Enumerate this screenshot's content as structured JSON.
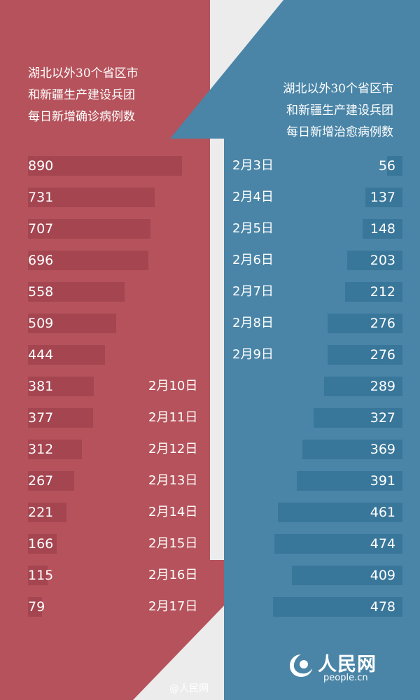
{
  "chart_data": {
    "type": "bar",
    "confirmed": {
      "title_lines": [
        "湖北以外30个省区市",
        "和新疆生产建设兵团",
        "每日新增确诊病例数"
      ],
      "values": [
        890,
        731,
        707,
        696,
        558,
        509,
        444,
        381,
        377,
        312,
        267,
        221,
        166,
        115,
        79
      ]
    },
    "cured": {
      "title_lines": [
        "湖北以外30个省区市",
        "和新疆生产建设兵团",
        "每日新增治愈病例数"
      ],
      "values": [
        56,
        137,
        148,
        203,
        212,
        276,
        276,
        289,
        327,
        369,
        391,
        461,
        474,
        409,
        478
      ]
    },
    "categories": [
      "2月3日",
      "2月4日",
      "2月5日",
      "2月6日",
      "2月7日",
      "2月8日",
      "2月9日",
      "2月10日",
      "2月11日",
      "2月12日",
      "2月13日",
      "2月14日",
      "2月15日",
      "2月16日",
      "2月17日"
    ]
  },
  "brand": {
    "logo_text": "人民网",
    "domain": "people.cn"
  },
  "watermark": "@人民网",
  "colors": {
    "confirmed": "#b5525b",
    "confirmed_bar": "#a44550",
    "cured": "#4a85a7",
    "cured_bar": "#38769a",
    "background": "#ececec"
  },
  "icons": {
    "brand": "people-logo-icon"
  }
}
